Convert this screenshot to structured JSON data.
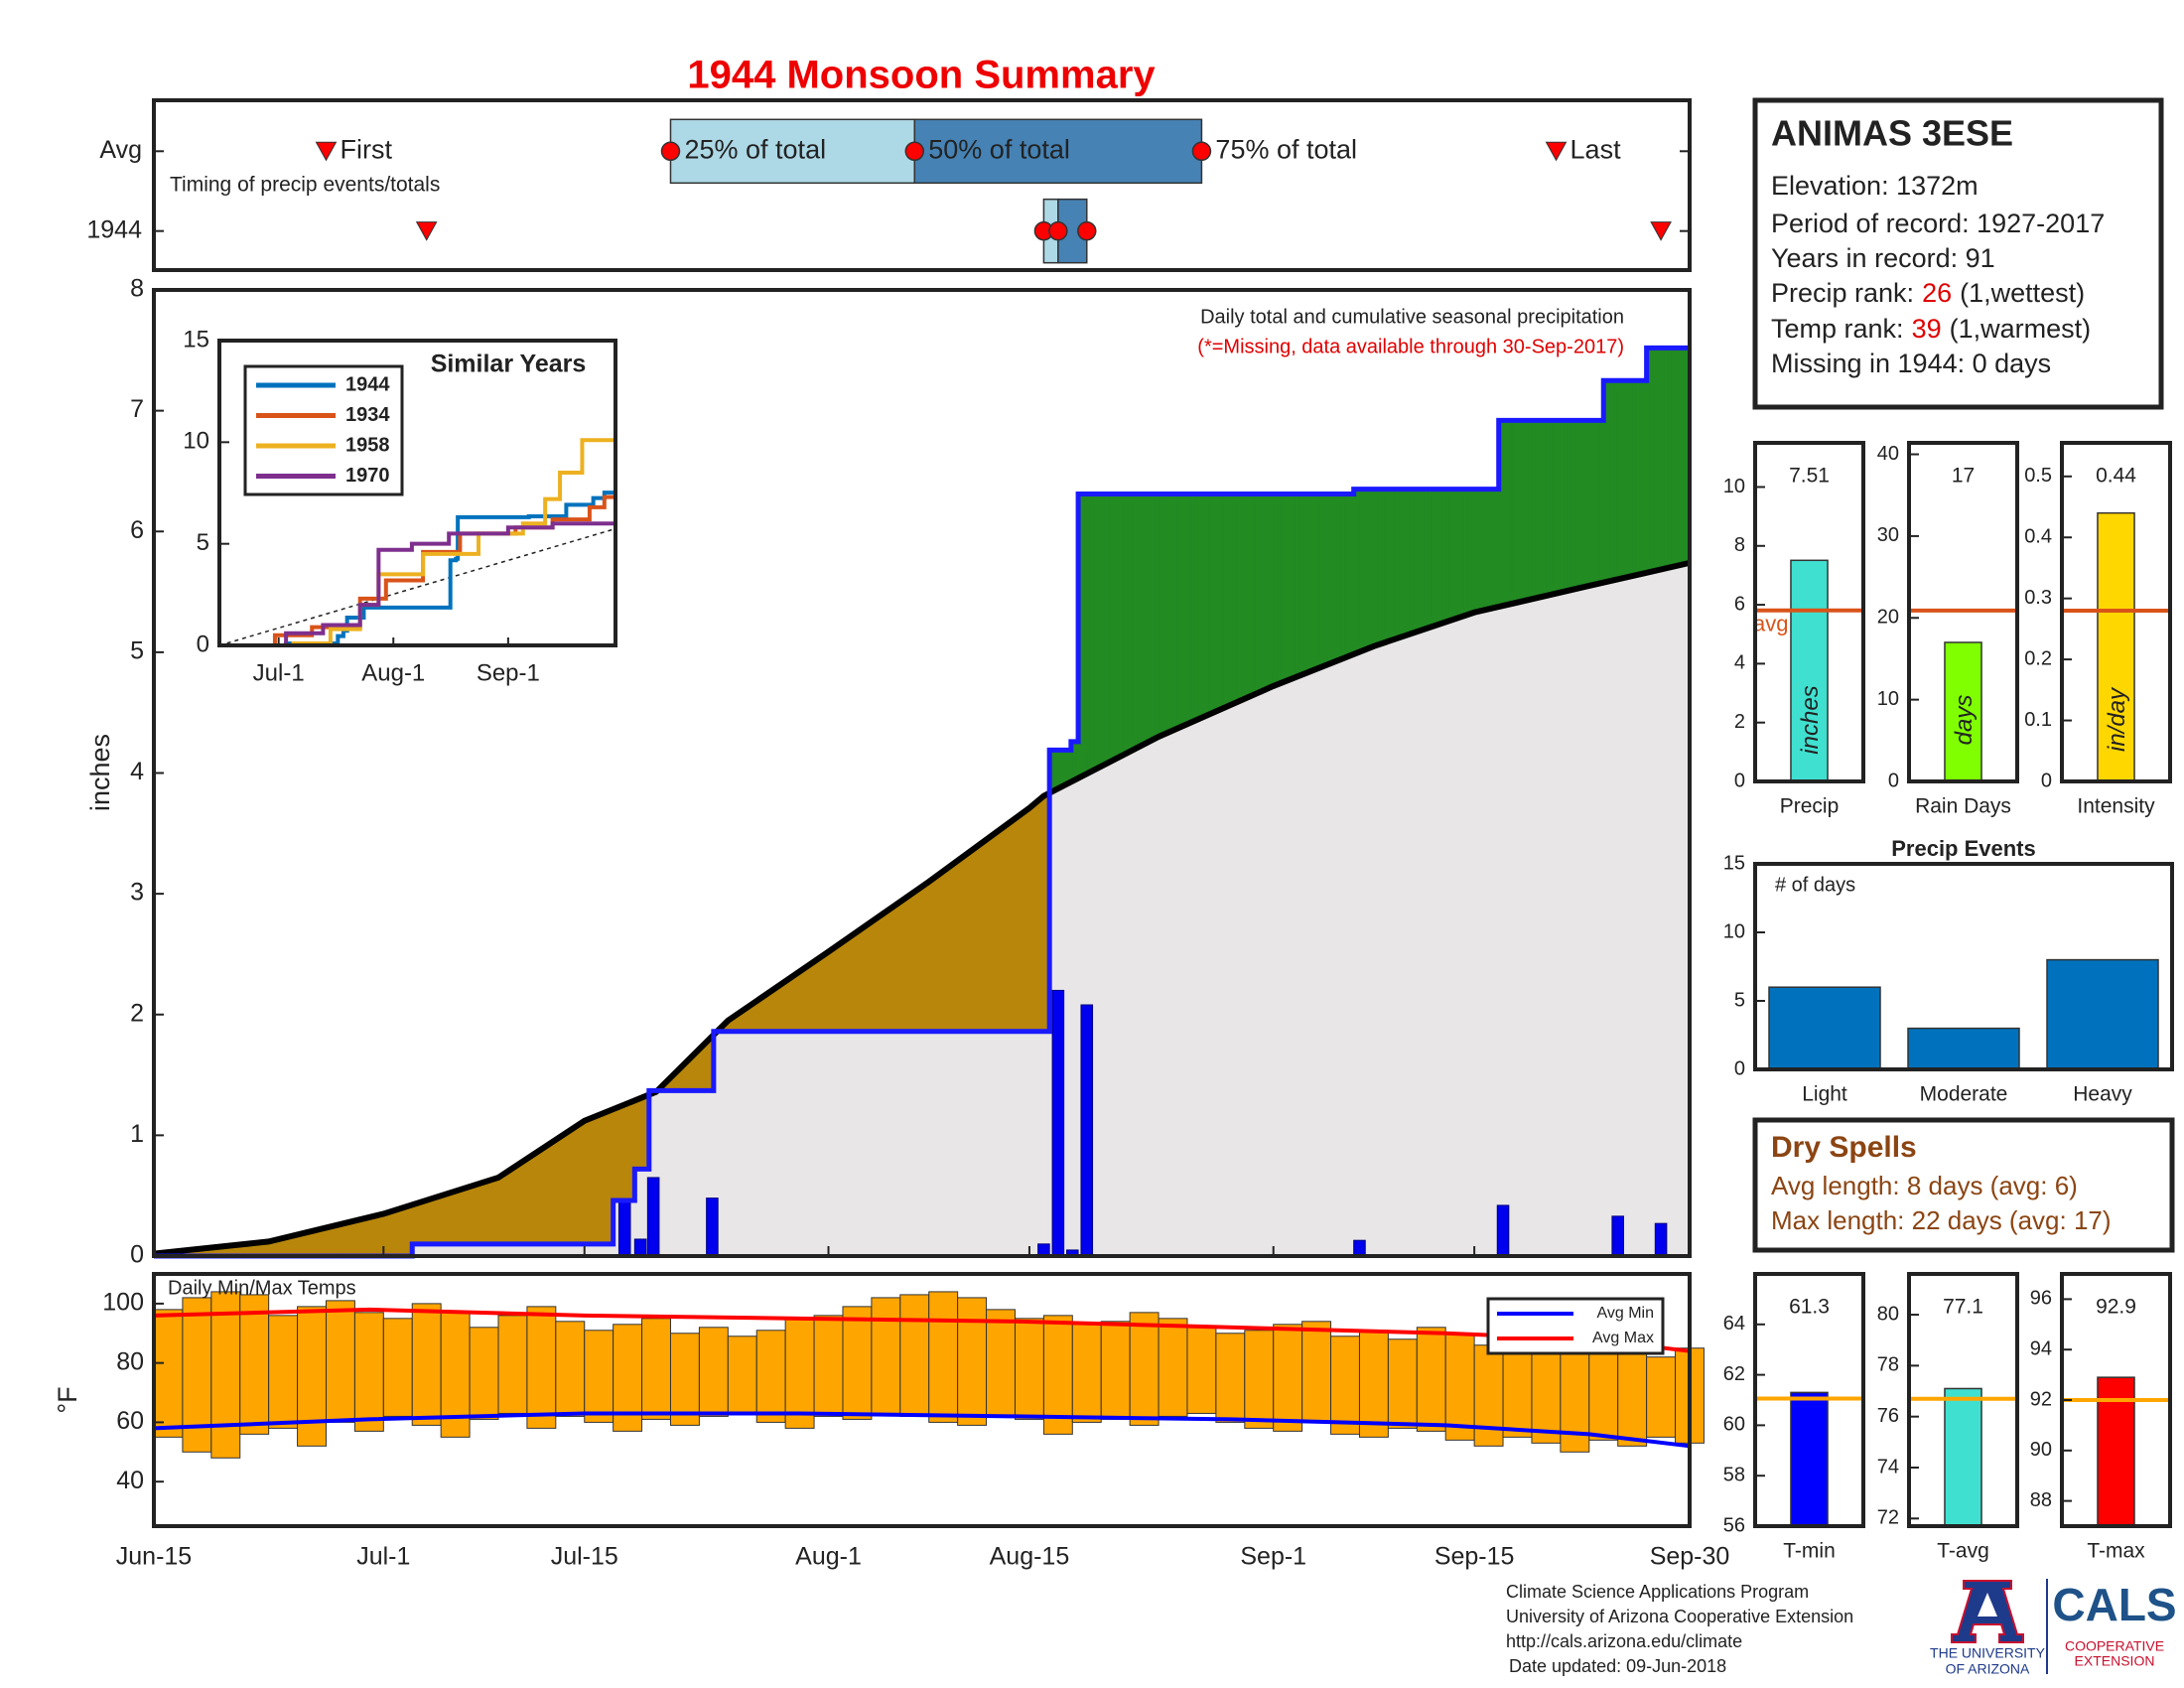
{
  "title": "1944 Monsoon Summary",
  "chart_data": [
    {
      "type": "timeline",
      "note": "Timing of precip events/totals",
      "xlim": [
        0,
        107
      ],
      "marker_labels": {
        "first": "First",
        "q25": "25% of total",
        "q50": "50% of total",
        "q75": "75% of total",
        "last": "Last"
      },
      "rows": [
        {
          "label": "Avg",
          "first": 12,
          "q25": 36,
          "q50": 53,
          "q75": 73,
          "last": 97.7
        },
        {
          "label": "1944",
          "first": 19,
          "q25": 62,
          "q50": 63,
          "q75": 65,
          "last": 105
        }
      ],
      "colors": {
        "q25_q50": "#add8e6",
        "q50_q75": "#4682b4",
        "marker": "#ff0000"
      }
    },
    {
      "type": "step",
      "ylabel": "inches",
      "note": "Daily total and cumulative seasonal precipitation",
      "note2": "(*=Missing, data available through 30-Sep-2017)",
      "xlim": [
        0,
        107
      ],
      "xticks": [
        {
          "value": 0,
          "label": "Jun-15"
        },
        {
          "value": 16,
          "label": "Jul-1"
        },
        {
          "value": 30,
          "label": "Jul-15"
        },
        {
          "value": 47,
          "label": "Aug-1"
        },
        {
          "value": 61,
          "label": "Aug-15"
        },
        {
          "value": 78,
          "label": "Sep-1"
        },
        {
          "value": 92,
          "label": "Sep-15"
        },
        {
          "value": 107,
          "label": "Sep-30"
        }
      ],
      "ylim": [
        0,
        8
      ],
      "yticks": [
        0,
        1,
        2,
        3,
        4,
        5,
        6,
        7,
        8
      ],
      "cumulative": {
        "color": "#1a1aff",
        "x": [
          0,
          18,
          32,
          33.5,
          34.5,
          39,
          62.4,
          63.9,
          64.4,
          83.6,
          93.7,
          101,
          104
        ],
        "values": [
          0,
          0.1,
          0.46,
          0.72,
          1.37,
          1.86,
          4.19,
          4.26,
          6.31,
          6.35,
          6.92,
          7.25,
          7.52
        ]
      },
      "average": {
        "color": "#000000",
        "x": [
          0,
          8,
          16,
          24,
          30,
          35,
          40,
          47,
          54,
          61,
          62,
          70,
          78,
          85,
          92,
          100,
          107
        ],
        "values": [
          0.02,
          0.12,
          0.35,
          0.65,
          1.12,
          1.36,
          1.95,
          2.52,
          3.1,
          3.71,
          3.81,
          4.3,
          4.72,
          5.05,
          5.33,
          5.55,
          5.74
        ]
      },
      "daily": {
        "color": "#0000ee",
        "x": [
          32.8,
          33.9,
          34.8,
          38.9,
          62,
          63,
          64,
          65,
          84,
          94,
          102,
          105
        ],
        "values": [
          0.46,
          0.14,
          0.65,
          0.48,
          0.1,
          2.2,
          0.05,
          2.08,
          0.13,
          0.42,
          0.33,
          0.27
        ]
      },
      "fill_colors": {
        "below": "#e8e6e6",
        "above_average": "#228b22",
        "below_average": "#b8860b"
      }
    },
    {
      "type": "line",
      "legend_title": "Similar Years",
      "xlim": [
        0,
        107
      ],
      "xticks": [
        {
          "value": 16,
          "label": "Jul-1"
        },
        {
          "value": 47,
          "label": "Aug-1"
        },
        {
          "value": 78,
          "label": "Sep-1"
        }
      ],
      "ylim": [
        0,
        15
      ],
      "yticks": [
        0,
        5,
        10,
        15
      ],
      "series": [
        {
          "name": "1944",
          "color": "#0072bd",
          "x": [
            0,
            18,
            32,
            33.5,
            34.5,
            39,
            62.4,
            63.9,
            64.4,
            83.6,
            93.7,
            101,
            104
          ],
          "values": [
            0,
            0.1,
            0.46,
            0.72,
            1.37,
            1.86,
            4.19,
            4.26,
            6.31,
            6.35,
            6.92,
            7.25,
            7.52
          ]
        },
        {
          "name": "1934",
          "color": "#d95319",
          "x": [
            0,
            15,
            25,
            38,
            45,
            55,
            65,
            80,
            90,
            100,
            104
          ],
          "values": [
            0,
            0.5,
            0.9,
            2.3,
            3.2,
            4.6,
            5.5,
            5.8,
            6.2,
            6.8,
            7.3
          ]
        },
        {
          "name": "1958",
          "color": "#edb120",
          "x": [
            0,
            20,
            30,
            38,
            43,
            55,
            70,
            82,
            88,
            92,
            98
          ],
          "values": [
            0,
            0.1,
            0.8,
            2.0,
            3.5,
            4.5,
            5.5,
            6.0,
            7.2,
            8.5,
            10.1
          ]
        },
        {
          "name": "1970",
          "color": "#7e2f8e",
          "x": [
            0,
            18,
            28,
            38,
            43,
            52,
            62,
            78,
            90
          ],
          "values": [
            0,
            0.6,
            1.0,
            2.0,
            4.7,
            5.0,
            5.5,
            5.8,
            6.0
          ]
        }
      ],
      "average": {
        "x": [
          0,
          107
        ],
        "values": [
          0,
          5.74
        ]
      }
    },
    {
      "type": "range_bar",
      "title": "Daily Min/Max Temps",
      "ylabel": "°F",
      "xlim": [
        0,
        107
      ],
      "ylim": [
        25,
        110
      ],
      "yticks": [
        40,
        60,
        80,
        100
      ],
      "bar_color": "#ffa500",
      "x": [
        0,
        2,
        4,
        6,
        8,
        10,
        12,
        14,
        16,
        18,
        20,
        22,
        24,
        26,
        28,
        30,
        32,
        34,
        36,
        38,
        40,
        42,
        44,
        46,
        48,
        50,
        52,
        54,
        56,
        58,
        60,
        62,
        64,
        66,
        68,
        70,
        72,
        74,
        76,
        78,
        80,
        82,
        84,
        86,
        88,
        90,
        92,
        94,
        96,
        98,
        100,
        102,
        104,
        106
      ],
      "max": [
        98,
        102,
        104,
        103,
        96,
        99,
        101,
        97,
        95,
        100,
        97,
        92,
        96,
        99,
        94,
        91,
        93,
        95,
        90,
        92,
        89,
        91,
        95,
        96,
        99,
        102,
        103,
        104,
        102,
        98,
        95,
        96,
        93,
        94,
        97,
        95,
        92,
        90,
        91,
        93,
        94,
        89,
        91,
        88,
        92,
        90,
        86,
        88,
        89,
        85,
        87,
        84,
        82,
        85
      ],
      "min": [
        55,
        50,
        48,
        56,
        58,
        52,
        60,
        57,
        62,
        59,
        55,
        61,
        63,
        58,
        62,
        60,
        57,
        61,
        59,
        62,
        63,
        60,
        58,
        62,
        61,
        63,
        62,
        60,
        59,
        62,
        61,
        56,
        60,
        61,
        59,
        62,
        63,
        60,
        58,
        57,
        60,
        56,
        55,
        58,
        57,
        54,
        52,
        55,
        53,
        50,
        54,
        52,
        55,
        53
      ],
      "series": [
        {
          "name": "Avg Min",
          "color": "#0000ff",
          "x": [
            0,
            15,
            30,
            45,
            60,
            75,
            90,
            100,
            107
          ],
          "values": [
            58,
            61,
            63,
            63,
            62,
            61,
            59,
            56,
            52
          ]
        },
        {
          "name": "Avg Max",
          "color": "#ff0000",
          "x": [
            0,
            15,
            30,
            45,
            60,
            75,
            90,
            100,
            107
          ],
          "values": [
            96,
            98,
            96,
            95,
            94,
            92,
            90,
            88,
            84
          ]
        }
      ]
    },
    {
      "type": "bar",
      "categories": [
        "Precip"
      ],
      "values": [
        7.51
      ],
      "color": "#40e0d0",
      "data_labels": true,
      "bar_label": "inches",
      "reference": 5.81,
      "reference_label": "avg",
      "reference_color": "#d95319",
      "ylim": [
        0,
        11.5
      ],
      "yticks": [
        0,
        2,
        4,
        6,
        8,
        10
      ]
    },
    {
      "type": "bar",
      "categories": [
        "Rain Days"
      ],
      "values": [
        17
      ],
      "color": "#7fff00",
      "data_labels": true,
      "bar_label": "days",
      "reference": 20.9,
      "reference_color": "#d95319",
      "ylim": [
        0,
        41.4
      ],
      "yticks": [
        0,
        10,
        20,
        30,
        40
      ]
    },
    {
      "type": "bar",
      "categories": [
        "Intensity"
      ],
      "values": [
        0.44
      ],
      "color": "#ffd700",
      "data_labels": true,
      "bar_label": "in/day",
      "reference": 0.28,
      "reference_color": "#d95319",
      "ylim": [
        0,
        0.555
      ],
      "yticks": [
        0,
        0.1,
        0.2,
        0.3,
        0.4,
        0.5
      ]
    },
    {
      "type": "bar",
      "title": "Precip Events",
      "note": "# of days",
      "categories": [
        "Light",
        "Moderate",
        "Heavy"
      ],
      "values": [
        6,
        3,
        8
      ],
      "color": "#0072bd",
      "data_labels": false,
      "ylim": [
        0,
        15
      ],
      "yticks": [
        0,
        5,
        10,
        15
      ]
    },
    {
      "type": "bar",
      "categories": [
        "T-min"
      ],
      "values": [
        61.3
      ],
      "color": "#0000ff",
      "data_labels": true,
      "reference": 61.06,
      "reference_color": "#ffa500",
      "ylim": [
        56,
        66
      ],
      "yticks": [
        56,
        58,
        60,
        62,
        64
      ]
    },
    {
      "type": "bar",
      "categories": [
        "T-avg"
      ],
      "values": [
        77.1
      ],
      "color": "#40e0d0",
      "data_labels": true,
      "reference": 76.7,
      "reference_color": "#ffa500",
      "ylim": [
        71.7,
        81.6
      ],
      "yticks": [
        72,
        74,
        76,
        78,
        80
      ]
    },
    {
      "type": "bar",
      "categories": [
        "T-max"
      ],
      "values": [
        92.9
      ],
      "color": "#ff0000",
      "data_labels": true,
      "reference": 92.0,
      "reference_color": "#ffa500",
      "ylim": [
        87,
        97
      ],
      "yticks": [
        88,
        90,
        92,
        94,
        96
      ]
    }
  ],
  "station": {
    "name": "ANIMAS 3ESE",
    "lines": [
      "Elevation: 1372m",
      "Period of record: 1927-2017",
      "Years in record: 91"
    ],
    "precip_rank": {
      "label": "Precip rank:",
      "value": 26,
      "note": "(1,wettest)"
    },
    "temp_rank": {
      "label": "Temp rank:",
      "value": 39,
      "note": "(1,warmest)"
    },
    "missing": "Missing in 1944: 0 days"
  },
  "dry_spells": {
    "title": "Dry Spells",
    "lines": [
      "Avg length: 8 days (avg: 6)",
      "Max length: 22 days (avg: 17)"
    ]
  },
  "footer": {
    "lines": [
      "Climate Science Applications Program",
      "University of Arizona Cooperative Extension",
      "http://cals.arizona.edu/climate",
      "Date updated: 09-Jun-2018"
    ]
  },
  "logo": {
    "university": [
      "THE UNIVERSITY",
      "OF ARIZONA"
    ],
    "cals": "CALS",
    "extension": [
      "COOPERATIVE",
      "EXTENSION"
    ]
  }
}
